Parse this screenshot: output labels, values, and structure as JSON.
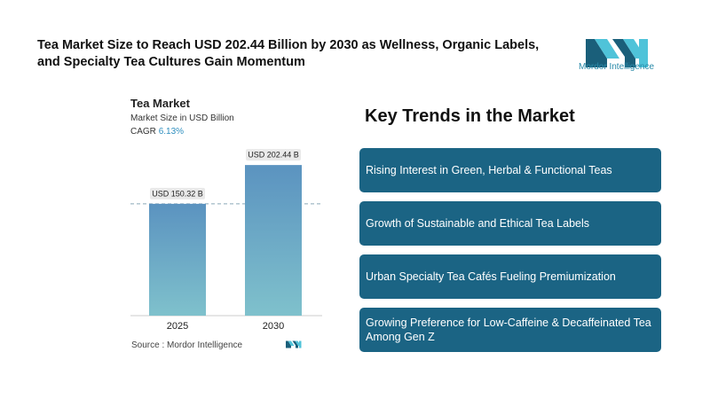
{
  "headline": "Tea Market Size to Reach USD 202.44 Billion by 2030 as Wellness, Organic Labels, and Specialty Tea Cultures Gain Momentum",
  "brand": {
    "name": "Mordor Intelligence",
    "logo_icon": "mordor-intelligence-logo",
    "colors": {
      "dark": "#1a5f7a",
      "light": "#4fc3d9"
    }
  },
  "chart": {
    "title": "Tea Market",
    "subtitle": "Market Size in USD Billion",
    "cagr_label": "CAGR",
    "cagr_value": "6.13%"
  },
  "chart_data": {
    "type": "bar",
    "categories": [
      "2025",
      "2030"
    ],
    "values": [
      150.32,
      202.44
    ],
    "data_labels": [
      "USD 150.32 B",
      "USD 202.44 B"
    ],
    "title": "Tea Market",
    "ylabel": "Market Size in USD Billion",
    "ylim": [
      0,
      230
    ],
    "grid": false,
    "reference_line_at": 150.32,
    "bar_gradient": [
      "#5b93c0",
      "#7fc1cc"
    ]
  },
  "source": "Source : Mordor Intelligence",
  "trends": {
    "title": "Key Trends in the Market",
    "items": [
      {
        "label": "Rising Interest in Green, Herbal & Functional Teas"
      },
      {
        "label": "Growth of Sustainable and Ethical Tea Labels"
      },
      {
        "label": "Urban Specialty Tea Cafés Fueling Premiumization"
      },
      {
        "label": "Growing Preference for Low-Caffeine & Decaffeinated Tea Among Gen Z"
      }
    ]
  }
}
